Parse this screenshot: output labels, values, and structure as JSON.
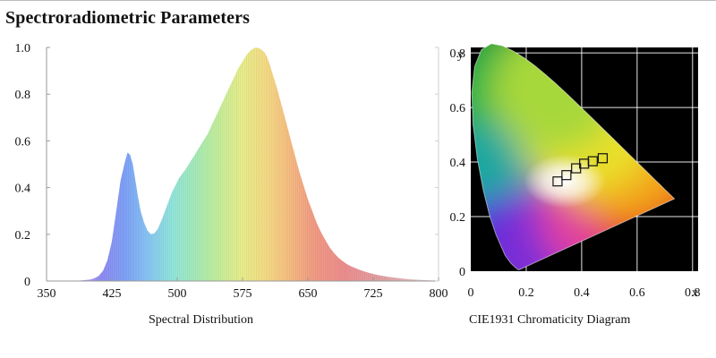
{
  "page": {
    "title": "Spectroradiometric Parameters"
  },
  "chart_data": [
    {
      "type": "area",
      "caption": "Spectral Distribution",
      "xlim": [
        350,
        800
      ],
      "ylim": [
        0,
        1.0
      ],
      "x_ticks": [
        "350",
        "425",
        "500",
        "575",
        "650",
        "725",
        "800"
      ],
      "y_ticks": [
        "0",
        "0.2",
        "0.4",
        "0.6",
        "0.8",
        "1.0"
      ],
      "grid": false,
      "fill": "rainbow-by-wavelength",
      "x": [
        380,
        390,
        400,
        405,
        410,
        415,
        420,
        425,
        430,
        435,
        440,
        443,
        446,
        449,
        452,
        455,
        458,
        462,
        466,
        470,
        474,
        478,
        482,
        486,
        490,
        494,
        498,
        502,
        506,
        510,
        515,
        520,
        525,
        530,
        535,
        540,
        545,
        550,
        555,
        560,
        565,
        570,
        575,
        580,
        585,
        590,
        595,
        600,
        603,
        606,
        610,
        615,
        620,
        625,
        630,
        635,
        640,
        645,
        650,
        655,
        660,
        665,
        670,
        675,
        680,
        685,
        690,
        695,
        700,
        710,
        720,
        730,
        740,
        750,
        760,
        770,
        780,
        790,
        800
      ],
      "y": [
        0.0,
        0.003,
        0.006,
        0.012,
        0.022,
        0.045,
        0.09,
        0.17,
        0.3,
        0.43,
        0.51,
        0.55,
        0.54,
        0.5,
        0.43,
        0.36,
        0.3,
        0.25,
        0.215,
        0.2,
        0.205,
        0.225,
        0.26,
        0.3,
        0.34,
        0.38,
        0.41,
        0.44,
        0.46,
        0.48,
        0.51,
        0.54,
        0.57,
        0.6,
        0.63,
        0.67,
        0.71,
        0.75,
        0.79,
        0.83,
        0.87,
        0.91,
        0.94,
        0.97,
        0.99,
        1.0,
        0.995,
        0.98,
        0.96,
        0.93,
        0.88,
        0.82,
        0.75,
        0.68,
        0.61,
        0.54,
        0.47,
        0.41,
        0.35,
        0.3,
        0.25,
        0.21,
        0.175,
        0.145,
        0.12,
        0.1,
        0.085,
        0.072,
        0.062,
        0.047,
        0.035,
        0.026,
        0.019,
        0.014,
        0.01,
        0.007,
        0.005,
        0.003,
        0.002
      ]
    },
    {
      "type": "scatter",
      "caption": "CIE1931 Chromaticity Diagram",
      "xlabel": "x",
      "ylabel": "y",
      "xlim": [
        0,
        0.82
      ],
      "ylim": [
        0,
        0.82
      ],
      "x_ticks": [
        "0",
        "0.2",
        "0.4",
        "0.6",
        "0.8"
      ],
      "y_ticks": [
        "0",
        "0.2",
        "0.4",
        "0.6",
        "0.8"
      ],
      "grid": true,
      "background": "#000000",
      "gridline_color": "#ffffff",
      "locus": {
        "x": [
          0.1741,
          0.1738,
          0.1733,
          0.1726,
          0.1714,
          0.1689,
          0.1644,
          0.1566,
          0.144,
          0.1241,
          0.0913,
          0.0687,
          0.0454,
          0.0235,
          0.0082,
          0.0039,
          0.0139,
          0.0389,
          0.0743,
          0.1142,
          0.1547,
          0.1929,
          0.2296,
          0.2658,
          0.3016,
          0.3373,
          0.3731,
          0.4087,
          0.4441,
          0.4788,
          0.5125,
          0.5448,
          0.5752,
          0.6029,
          0.627,
          0.6482,
          0.6658,
          0.6801,
          0.6915,
          0.7006,
          0.7079,
          0.714,
          0.719,
          0.723,
          0.726,
          0.7347
        ],
        "y": [
          0.005,
          0.0049,
          0.0048,
          0.0048,
          0.0051,
          0.0069,
          0.0109,
          0.0177,
          0.0297,
          0.0578,
          0.1327,
          0.2007,
          0.295,
          0.4127,
          0.5384,
          0.6548,
          0.7502,
          0.812,
          0.8338,
          0.8262,
          0.8059,
          0.7816,
          0.7543,
          0.7243,
          0.6923,
          0.6589,
          0.6245,
          0.5896,
          0.5547,
          0.5202,
          0.4866,
          0.4544,
          0.4242,
          0.3965,
          0.3725,
          0.3514,
          0.334,
          0.3197,
          0.3083,
          0.2993,
          0.292,
          0.2859,
          0.2809,
          0.277,
          0.274,
          0.2653
        ]
      },
      "points": [
        {
          "x": 0.313,
          "y": 0.329
        },
        {
          "x": 0.345,
          "y": 0.352
        },
        {
          "x": 0.38,
          "y": 0.377
        },
        {
          "x": 0.409,
          "y": 0.394
        },
        {
          "x": 0.44,
          "y": 0.403
        },
        {
          "x": 0.476,
          "y": 0.414
        }
      ],
      "marker": "open-square"
    }
  ]
}
